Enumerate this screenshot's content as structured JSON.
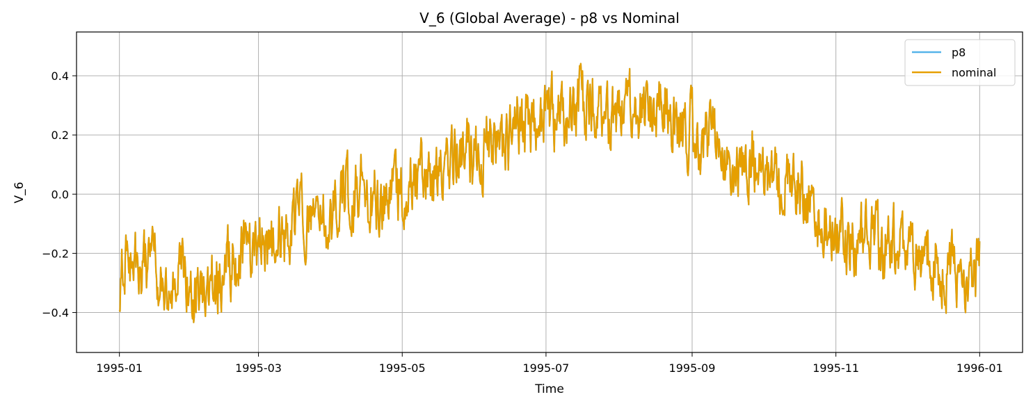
{
  "chart_data": {
    "type": "line",
    "title": "V_6 (Global Average) - p8 vs Nominal",
    "xlabel": "Time",
    "ylabel": "V_6",
    "grid": true,
    "legend_location": "top-right",
    "x_ticks": [
      "1995-01",
      "1995-03",
      "1995-05",
      "1995-07",
      "1995-09",
      "1995-11",
      "1996-01"
    ],
    "x_tick_days": [
      0,
      59,
      120,
      181,
      243,
      304,
      365
    ],
    "x_range_days": [
      -18.2,
      383.2
    ],
    "y_ticks": [
      0.4,
      0.2,
      0.0,
      -0.2,
      -0.4
    ],
    "y_tick_labels": [
      "0.4",
      "0.2",
      "0.0",
      "−0.2",
      "−0.4"
    ],
    "ylim": [
      -0.535,
      0.548
    ],
    "series": [
      {
        "name": "p8",
        "color": "#56b4e9",
        "anchor_days": [
          0,
          5,
          10,
          15,
          20,
          25,
          31,
          36,
          41,
          46,
          52,
          59,
          64,
          69,
          74,
          80,
          85,
          90,
          95,
          100,
          105,
          110,
          115,
          120,
          125,
          130,
          135,
          140,
          145,
          150,
          155,
          160,
          165,
          170,
          175,
          181,
          186,
          191,
          196,
          201,
          206,
          212,
          217,
          222,
          227,
          232,
          237,
          243,
          248,
          253,
          258,
          263,
          268,
          273,
          278,
          283,
          288,
          293,
          298,
          304,
          309,
          314,
          319,
          324,
          329,
          334,
          339,
          344,
          349,
          354,
          359,
          365
        ],
        "anchor_values": [
          -0.3,
          -0.2,
          -0.26,
          -0.24,
          -0.3,
          -0.28,
          -0.33,
          -0.31,
          -0.3,
          -0.22,
          -0.22,
          -0.14,
          -0.19,
          -0.1,
          -0.12,
          -0.07,
          -0.06,
          -0.13,
          0.02,
          0.0,
          0.03,
          -0.05,
          0.0,
          0.02,
          0.05,
          0.04,
          0.07,
          0.13,
          0.14,
          0.12,
          0.17,
          0.16,
          0.15,
          0.25,
          0.22,
          0.28,
          0.25,
          0.25,
          0.33,
          0.31,
          0.25,
          0.27,
          0.31,
          0.3,
          0.3,
          0.32,
          0.2,
          0.22,
          0.17,
          0.16,
          0.13,
          0.08,
          0.14,
          0.11,
          0.04,
          0.05,
          0.03,
          -0.05,
          -0.08,
          -0.13,
          -0.17,
          -0.14,
          -0.16,
          -0.2,
          -0.15,
          -0.18,
          -0.2,
          -0.18,
          -0.23,
          -0.27,
          -0.26,
          -0.26
        ],
        "noise_amplitude": 0.075
      },
      {
        "name": "nominal",
        "color": "#e69f00",
        "anchor_days": [
          0,
          5,
          10,
          15,
          20,
          25,
          31,
          36,
          41,
          46,
          52,
          59,
          64,
          69,
          74,
          80,
          85,
          90,
          95,
          100,
          105,
          110,
          115,
          120,
          125,
          130,
          135,
          140,
          145,
          150,
          155,
          160,
          165,
          170,
          175,
          181,
          186,
          191,
          196,
          201,
          206,
          212,
          217,
          222,
          227,
          232,
          237,
          243,
          248,
          253,
          258,
          263,
          268,
          273,
          278,
          283,
          288,
          293,
          298,
          304,
          309,
          314,
          319,
          324,
          329,
          334,
          339,
          344,
          349,
          354,
          359,
          365
        ],
        "anchor_values": [
          -0.3,
          -0.2,
          -0.26,
          -0.24,
          -0.3,
          -0.28,
          -0.33,
          -0.31,
          -0.3,
          -0.22,
          -0.22,
          -0.14,
          -0.19,
          -0.1,
          -0.12,
          -0.07,
          -0.06,
          -0.13,
          0.02,
          0.0,
          0.03,
          -0.05,
          0.0,
          0.02,
          0.05,
          0.04,
          0.07,
          0.13,
          0.14,
          0.12,
          0.17,
          0.16,
          0.15,
          0.25,
          0.22,
          0.28,
          0.25,
          0.25,
          0.33,
          0.31,
          0.25,
          0.27,
          0.31,
          0.3,
          0.3,
          0.32,
          0.2,
          0.22,
          0.17,
          0.16,
          0.13,
          0.08,
          0.14,
          0.11,
          0.04,
          0.05,
          0.03,
          -0.05,
          -0.08,
          -0.13,
          -0.17,
          -0.14,
          -0.16,
          -0.2,
          -0.15,
          -0.18,
          -0.2,
          -0.18,
          -0.23,
          -0.27,
          -0.26,
          -0.26
        ],
        "noise_amplitude": 0.075
      }
    ]
  }
}
